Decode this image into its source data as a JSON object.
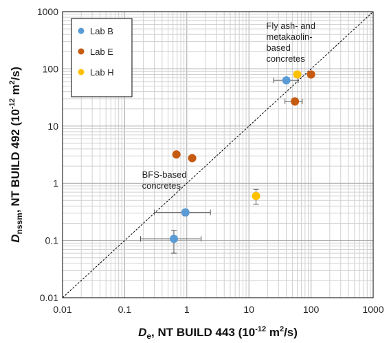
{
  "chart_data": {
    "type": "scatter",
    "x_scale": "log",
    "y_scale": "log",
    "xlim": [
      0.01,
      1000
    ],
    "ylim": [
      0.01,
      1000
    ],
    "grid": true,
    "x_ticks": [
      "0.01",
      "0.1",
      "1",
      "10",
      "100",
      "1000"
    ],
    "y_ticks": [
      "0.01",
      "0.1",
      "1",
      "10",
      "100",
      "1000"
    ],
    "xlabel": {
      "main": "D",
      "sub": "e",
      "rest": ", NT BUILD 443 (10",
      "sup": "-12",
      "unit": " m",
      "unit_sup": "2",
      "tail": "/s)"
    },
    "ylabel": {
      "main": "D",
      "sub": "nssm",
      "rest": ", NT BUILD 492 (10",
      "sup": "-12",
      "unit": " m",
      "unit_sup": "2",
      "tail": "/s)"
    },
    "reference_line": "y = x",
    "legend_position": "top-left",
    "series": [
      {
        "name": "Lab B",
        "color": "#5b9bd5",
        "points": [
          {
            "x": 40,
            "y": 63,
            "xerr": [
              25,
              62
            ]
          },
          {
            "x": 0.95,
            "y": 0.31,
            "xerr": [
              0.3,
              2.4
            ],
            "yerr": [
              0.27,
              0.35
            ]
          },
          {
            "x": 0.62,
            "y": 0.107,
            "xerr": [
              0.18,
              1.7
            ],
            "yerr": [
              0.06,
              0.15
            ]
          }
        ]
      },
      {
        "name": "Lab E",
        "color": "#c55a11",
        "points": [
          {
            "x": 100,
            "y": 80
          },
          {
            "x": 55,
            "y": 27,
            "xerr": [
              38,
              72
            ]
          },
          {
            "x": 0.68,
            "y": 3.2
          },
          {
            "x": 1.22,
            "y": 2.75
          }
        ]
      },
      {
        "name": "Lab H",
        "color": "#ffc000",
        "points": [
          {
            "x": 60,
            "y": 80
          },
          {
            "x": 13,
            "y": 0.6,
            "yerr": [
              0.43,
              0.78
            ]
          }
        ]
      }
    ],
    "annotations": [
      {
        "lines": [
          "Fly ash- and",
          "metakaolin-",
          "based",
          "concretes"
        ],
        "x": 19,
        "y": 500
      },
      {
        "lines": [
          "BFS-based",
          "concretes"
        ],
        "x": 0.19,
        "y": 1.25
      }
    ]
  }
}
